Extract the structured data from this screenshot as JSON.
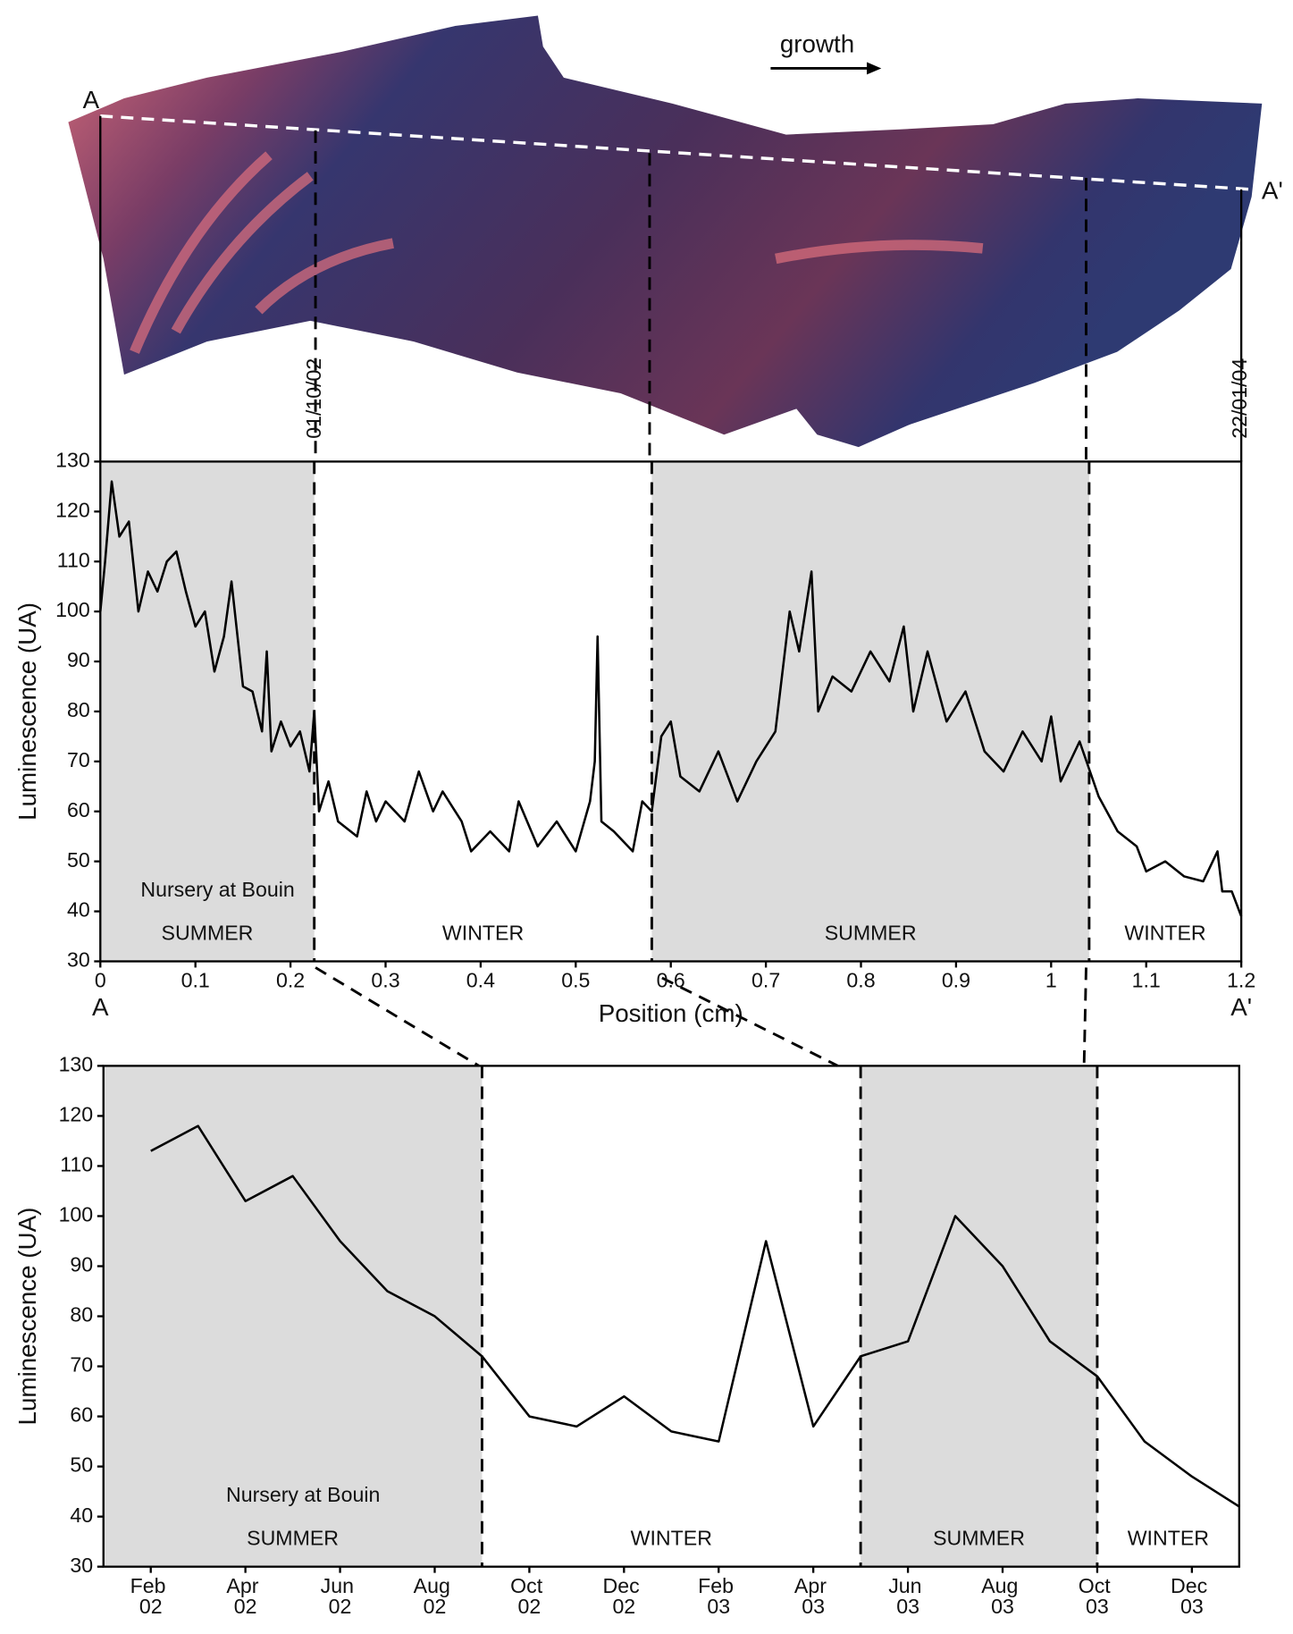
{
  "figure": {
    "growth": "growth",
    "start_label": "A",
    "end_label": "A'",
    "date_start": "01/10/02",
    "date_end": "22/01/04"
  },
  "chart_data": [
    {
      "type": "line",
      "x_label": "Position (cm)",
      "y_label": "Luminescence (UA)",
      "annotation": "Nursery at Bouin",
      "x_end_labels": [
        "A",
        "A'"
      ],
      "xlim": [
        0,
        1.2
      ],
      "xticks": [
        0,
        0.1,
        0.2,
        0.3,
        0.4,
        0.5,
        0.6,
        0.7,
        0.8,
        0.9,
        1,
        1.1,
        1.2
      ],
      "ylim": [
        30,
        130
      ],
      "yticks": [
        30,
        40,
        50,
        60,
        70,
        80,
        90,
        100,
        110,
        120,
        130
      ],
      "shade_color": "#dcdcdc",
      "seasons": [
        {
          "label": "SUMMER",
          "start": 0,
          "end": 0.225,
          "shaded": true
        },
        {
          "label": "WINTER",
          "start": 0.225,
          "end": 0.58,
          "shaded": false
        },
        {
          "label": "SUMMER",
          "start": 0.58,
          "end": 1.04,
          "shaded": true
        },
        {
          "label": "WINTER",
          "start": 1.04,
          "end": 1.2,
          "shaded": false
        }
      ],
      "series": [
        {
          "color": "#000000",
          "x": [
            0,
            0.005,
            0.012,
            0.02,
            0.03,
            0.04,
            0.05,
            0.06,
            0.07,
            0.08,
            0.09,
            0.1,
            0.11,
            0.12,
            0.13,
            0.138,
            0.15,
            0.16,
            0.17,
            0.175,
            0.18,
            0.19,
            0.2,
            0.21,
            0.22,
            0.225,
            0.23,
            0.24,
            0.25,
            0.27,
            0.28,
            0.29,
            0.3,
            0.32,
            0.335,
            0.35,
            0.36,
            0.38,
            0.39,
            0.41,
            0.43,
            0.44,
            0.46,
            0.48,
            0.5,
            0.515,
            0.52,
            0.523,
            0.527,
            0.54,
            0.56,
            0.57,
            0.58,
            0.59,
            0.6,
            0.61,
            0.63,
            0.65,
            0.67,
            0.69,
            0.71,
            0.725,
            0.735,
            0.748,
            0.755,
            0.77,
            0.79,
            0.81,
            0.83,
            0.845,
            0.855,
            0.87,
            0.89,
            0.91,
            0.93,
            0.95,
            0.97,
            0.99,
            1.0,
            1.01,
            1.03,
            1.05,
            1.07,
            1.09,
            1.1,
            1.12,
            1.14,
            1.16,
            1.175,
            1.18,
            1.19,
            1.2
          ],
          "values": [
            100,
            110,
            126,
            115,
            118,
            100,
            108,
            104,
            110,
            112,
            104,
            97,
            100,
            88,
            95,
            106,
            85,
            84,
            76,
            92,
            72,
            78,
            73,
            76,
            68,
            80,
            60,
            66,
            58,
            55,
            64,
            58,
            62,
            58,
            68,
            60,
            64,
            58,
            52,
            56,
            52,
            62,
            53,
            58,
            52,
            62,
            70,
            95,
            58,
            56,
            52,
            62,
            60,
            75,
            78,
            67,
            64,
            72,
            62,
            70,
            76,
            100,
            92,
            108,
            80,
            87,
            84,
            92,
            86,
            97,
            80,
            92,
            78,
            84,
            72,
            68,
            76,
            70,
            79,
            66,
            74,
            63,
            56,
            53,
            48,
            50,
            47,
            46,
            52,
            44,
            44,
            39
          ]
        }
      ]
    },
    {
      "type": "line",
      "y_label": "Luminescence (UA)",
      "annotation": "Nursery at Bouin",
      "xlim": [
        "2002-01",
        "2004-01"
      ],
      "xticks": [
        {
          "value": "2002-02",
          "label": "Feb 02"
        },
        {
          "value": "2002-04",
          "label": "Apr 02"
        },
        {
          "value": "2002-06",
          "label": "Jun 02"
        },
        {
          "value": "2002-08",
          "label": "Aug 02"
        },
        {
          "value": "2002-10",
          "label": "Oct 02"
        },
        {
          "value": "2002-12",
          "label": "Dec 02"
        },
        {
          "value": "2003-02",
          "label": "Feb 03"
        },
        {
          "value": "2003-04",
          "label": "Apr 03"
        },
        {
          "value": "2003-06",
          "label": "Jun 03"
        },
        {
          "value": "2003-08",
          "label": "Aug 03"
        },
        {
          "value": "2003-10",
          "label": "Oct 03"
        },
        {
          "value": "2003-12",
          "label": "Dec 03"
        }
      ],
      "ylim": [
        30,
        130
      ],
      "yticks": [
        30,
        40,
        50,
        60,
        70,
        80,
        90,
        100,
        110,
        120,
        130
      ],
      "shade_color": "#dcdcdc",
      "seasons": [
        {
          "label": "SUMMER",
          "start": "2002-01",
          "end": "2002-09",
          "shaded": true
        },
        {
          "label": "WINTER",
          "start": "2002-09",
          "end": "2003-05",
          "shaded": false
        },
        {
          "label": "SUMMER",
          "start": "2003-05",
          "end": "2003-10",
          "shaded": true
        },
        {
          "label": "WINTER",
          "start": "2003-10",
          "end": "2004-01",
          "shaded": false
        }
      ],
      "series": [
        {
          "color": "#000000",
          "x": [
            "2002-02",
            "2002-03",
            "2002-04",
            "2002-05",
            "2002-06",
            "2002-07",
            "2002-08",
            "2002-09",
            "2002-10",
            "2002-11",
            "2002-12",
            "2003-01",
            "2003-02",
            "2003-03",
            "2003-04",
            "2003-05",
            "2003-06",
            "2003-07",
            "2003-08",
            "2003-09",
            "2003-10",
            "2003-11",
            "2003-12",
            "2004-01"
          ],
          "values": [
            113,
            118,
            103,
            108,
            95,
            85,
            80,
            72,
            60,
            58,
            64,
            57,
            55,
            95,
            58,
            72,
            75,
            100,
            90,
            75,
            68,
            55,
            48,
            42
          ]
        }
      ]
    }
  ]
}
